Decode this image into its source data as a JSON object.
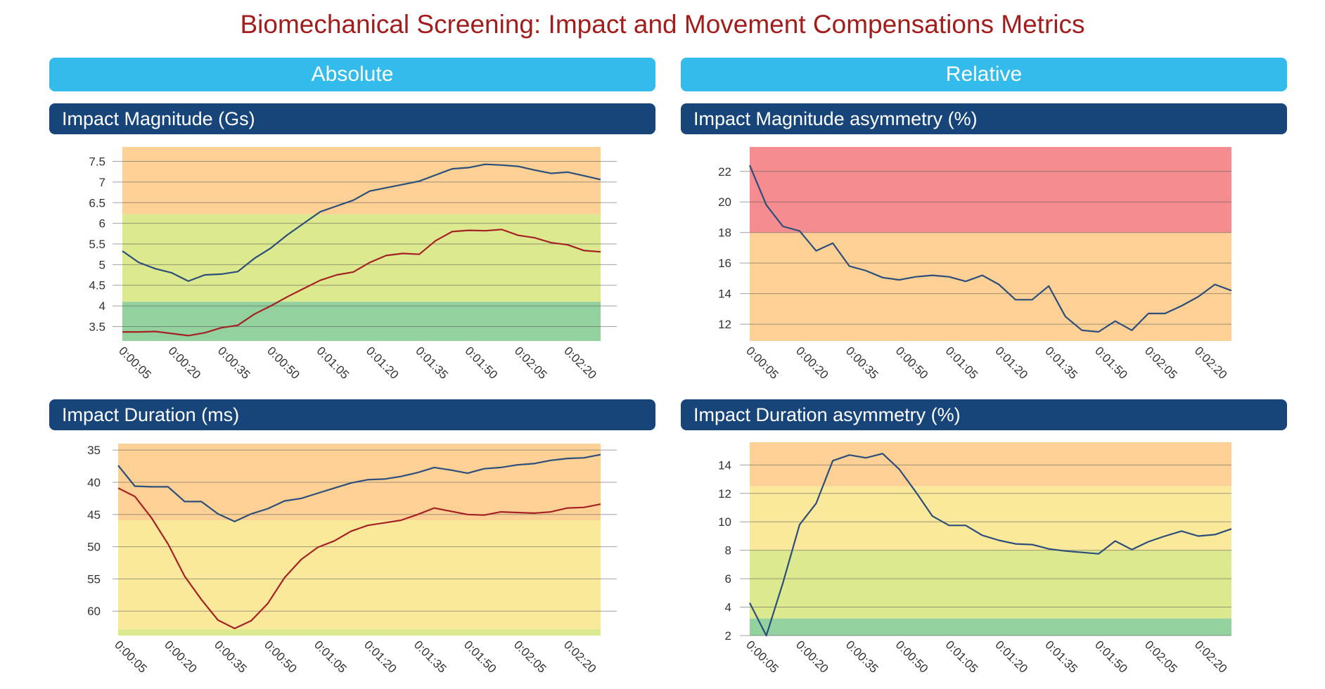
{
  "page": {
    "title": "Biomechanical Screening: Impact and Movement Compensations Metrics",
    "sections": {
      "absolute": "Absolute",
      "relative": "Relative"
    }
  },
  "colors": {
    "title": "#a31d1d",
    "section_bar": "#33bbeb",
    "chart_bar": "#17457a",
    "red_band": "#f58c8f",
    "orange_band": "#fdd196",
    "yellow_band": "#fbe99b",
    "lightgreen_band": "#dde98f",
    "green_band": "#93d19f",
    "series_blue": "#2c4e7a",
    "series_red": "#a52224"
  },
  "chart_data": [
    {
      "id": "impact-magnitude",
      "type": "line",
      "title": "Impact Magnitude (Gs)",
      "categories": [
        "0:00:05",
        "0:00:10",
        "0:00:15",
        "0:00:20",
        "0:00:25",
        "0:00:30",
        "0:00:35",
        "0:00:40",
        "0:00:45",
        "0:00:50",
        "0:00:55",
        "0:01:00",
        "0:01:05",
        "0:01:10",
        "0:01:15",
        "0:01:20",
        "0:01:25",
        "0:01:30",
        "0:01:35",
        "0:01:40",
        "0:01:45",
        "0:01:50",
        "0:01:55",
        "0:02:00",
        "0:02:05",
        "0:02:10",
        "0:02:15",
        "0:02:20",
        "0:02:25",
        "0:02:30"
      ],
      "tick_labels": [
        "0:00:05",
        "0:00:20",
        "0:00:35",
        "0:00:50",
        "0:01:05",
        "0:01:20",
        "0:01:35",
        "0:01:50",
        "0:02:05",
        "0:02:20"
      ],
      "y_ticks": [
        3.5,
        4,
        4.5,
        5,
        5.5,
        6,
        6.5,
        7,
        7.5
      ],
      "y_tick_labels": [
        "3.5",
        "4",
        "4.5",
        "5",
        "5.5",
        "6",
        "6.5",
        "7",
        "7.5"
      ],
      "ylim": [
        3.15,
        7.85
      ],
      "reversed": false,
      "bands": [
        {
          "from": 6.22,
          "to": 7.85,
          "color": "orange"
        },
        {
          "from": 4.1,
          "to": 6.22,
          "color": "lightgreen_yellow"
        },
        {
          "from": 3.15,
          "to": 4.1,
          "color": "green"
        }
      ],
      "series": [
        {
          "name": "blue",
          "color": "blue",
          "values": [
            5.33,
            5.05,
            4.9,
            4.8,
            4.6,
            4.75,
            4.77,
            4.83,
            5.15,
            5.4,
            5.72,
            6.0,
            6.28,
            6.42,
            6.56,
            6.78,
            6.86,
            6.94,
            7.02,
            7.17,
            7.32,
            7.35,
            7.43,
            7.41,
            7.38,
            7.29,
            7.21,
            7.24,
            7.15,
            7.06
          ]
        },
        {
          "name": "red",
          "color": "red",
          "values": [
            3.37,
            3.37,
            3.38,
            3.33,
            3.28,
            3.35,
            3.47,
            3.53,
            3.8,
            4.0,
            4.22,
            4.42,
            4.62,
            4.75,
            4.82,
            5.05,
            5.22,
            5.27,
            5.25,
            5.58,
            5.8,
            5.83,
            5.82,
            5.85,
            5.71,
            5.65,
            5.53,
            5.48,
            5.34,
            5.31
          ]
        }
      ]
    },
    {
      "id": "impact-magnitude-asymmetry",
      "type": "line",
      "title": "Impact Magnitude asymmetry (%)",
      "categories": [
        "0:00:05",
        "0:00:10",
        "0:00:15",
        "0:00:20",
        "0:00:25",
        "0:00:30",
        "0:00:35",
        "0:00:40",
        "0:00:45",
        "0:00:50",
        "0:00:55",
        "0:01:00",
        "0:01:05",
        "0:01:10",
        "0:01:15",
        "0:01:20",
        "0:01:25",
        "0:01:30",
        "0:01:35",
        "0:01:40",
        "0:01:45",
        "0:01:50",
        "0:01:55",
        "0:02:00",
        "0:02:05",
        "0:02:10",
        "0:02:15",
        "0:02:20",
        "0:02:25",
        "0:02:30"
      ],
      "tick_labels": [
        "0:00:05",
        "0:00:20",
        "0:00:35",
        "0:00:50",
        "0:01:05",
        "0:01:20",
        "0:01:35",
        "0:01:50",
        "0:02:05",
        "0:02:20"
      ],
      "y_ticks": [
        12,
        14,
        16,
        18,
        20,
        22
      ],
      "y_tick_labels": [
        "12",
        "14",
        "16",
        "18",
        "20",
        "22"
      ],
      "ylim": [
        10.9,
        23.6
      ],
      "reversed": false,
      "bands": [
        {
          "from": 18,
          "to": 23.6,
          "color": "red"
        },
        {
          "from": 10.9,
          "to": 18,
          "color": "orange"
        }
      ],
      "series": [
        {
          "name": "blue",
          "color": "blue",
          "values": [
            22.4,
            19.8,
            18.4,
            18.1,
            16.8,
            17.3,
            15.8,
            15.5,
            15.05,
            14.9,
            15.1,
            15.2,
            15.1,
            14.8,
            15.2,
            14.6,
            13.6,
            13.6,
            14.5,
            12.5,
            11.6,
            11.5,
            12.2,
            11.6,
            12.7,
            12.7,
            13.2,
            13.8,
            14.6,
            14.2
          ]
        }
      ]
    },
    {
      "id": "impact-duration",
      "type": "line",
      "title": "Impact Duration (ms)",
      "categories": [
        "0:00:05",
        "0:00:10",
        "0:00:15",
        "0:00:20",
        "0:00:25",
        "0:00:30",
        "0:00:35",
        "0:00:40",
        "0:00:45",
        "0:00:50",
        "0:00:55",
        "0:01:00",
        "0:01:05",
        "0:01:10",
        "0:01:15",
        "0:01:20",
        "0:01:25",
        "0:01:30",
        "0:01:35",
        "0:01:40",
        "0:01:45",
        "0:01:50",
        "0:01:55",
        "0:02:00",
        "0:02:05",
        "0:02:10",
        "0:02:15",
        "0:02:20",
        "0:02:25",
        "0:02:30"
      ],
      "tick_labels": [
        "0:00:05",
        "0:00:20",
        "0:00:35",
        "0:00:50",
        "0:01:05",
        "0:01:20",
        "0:01:35",
        "0:01:50",
        "0:02:05",
        "0:02:20"
      ],
      "y_ticks": [
        35,
        40,
        45,
        50,
        55,
        60
      ],
      "y_tick_labels": [
        "35",
        "40",
        "45",
        "50",
        "55",
        "60"
      ],
      "ylim": [
        34.0,
        63.8
      ],
      "reversed": true,
      "bands": [
        {
          "from": 34.0,
          "to": 45.9,
          "color": "orange"
        },
        {
          "from": 45.9,
          "to": 62.8,
          "color": "yellow"
        },
        {
          "from": 62.8,
          "to": 63.8,
          "color": "lightgreen"
        }
      ],
      "series": [
        {
          "name": "blue",
          "color": "blue",
          "values": [
            37.4,
            40.6,
            40.7,
            40.7,
            43.0,
            43.0,
            44.9,
            46.1,
            44.9,
            44.1,
            42.9,
            42.5,
            41.7,
            40.9,
            40.1,
            39.6,
            39.5,
            39.1,
            38.5,
            37.7,
            38.1,
            38.6,
            37.9,
            37.7,
            37.3,
            37.1,
            36.6,
            36.3,
            36.2,
            35.7
          ]
        },
        {
          "name": "red",
          "color": "red",
          "values": [
            40.9,
            42.2,
            45.5,
            49.6,
            54.6,
            58.2,
            61.4,
            62.7,
            61.5,
            58.8,
            54.8,
            52.0,
            50.1,
            49.1,
            47.6,
            46.7,
            46.3,
            45.9,
            45.0,
            44.0,
            44.5,
            45.0,
            45.1,
            44.6,
            44.7,
            44.8,
            44.6,
            44.0,
            43.9,
            43.4
          ]
        }
      ]
    },
    {
      "id": "impact-duration-asymmetry",
      "type": "line",
      "title": "Impact Duration asymmetry (%)",
      "categories": [
        "0:00:05",
        "0:00:10",
        "0:00:15",
        "0:00:20",
        "0:00:25",
        "0:00:30",
        "0:00:35",
        "0:00:40",
        "0:00:45",
        "0:00:50",
        "0:00:55",
        "0:01:00",
        "0:01:05",
        "0:01:10",
        "0:01:15",
        "0:01:20",
        "0:01:25",
        "0:01:30",
        "0:01:35",
        "0:01:40",
        "0:01:45",
        "0:01:50",
        "0:01:55",
        "0:02:00",
        "0:02:05",
        "0:02:10",
        "0:02:15",
        "0:02:20",
        "0:02:25",
        "0:02:30"
      ],
      "tick_labels": [
        "0:00:05",
        "0:00:20",
        "0:00:35",
        "0:00:50",
        "0:01:05",
        "0:01:20",
        "0:01:35",
        "0:01:50",
        "0:02:05",
        "0:02:20"
      ],
      "y_ticks": [
        2,
        4,
        6,
        8,
        10,
        12,
        14
      ],
      "y_tick_labels": [
        "2",
        "4",
        "6",
        "8",
        "10",
        "12",
        "14"
      ],
      "ylim": [
        2,
        15.6
      ],
      "reversed": false,
      "bands": [
        {
          "from": 12.5,
          "to": 15.6,
          "color": "orange"
        },
        {
          "from": 8.0,
          "to": 12.5,
          "color": "yellow"
        },
        {
          "from": 3.2,
          "to": 6.8,
          "color": "lightgreen"
        },
        {
          "from": 6.8,
          "to": 8.0,
          "color": "lightgreen"
        },
        {
          "from": 2,
          "to": 3.2,
          "color": "green"
        }
      ],
      "series": [
        {
          "name": "blue",
          "color": "blue",
          "values": [
            4.3,
            2.0,
            5.7,
            9.8,
            11.3,
            14.3,
            14.7,
            14.5,
            14.8,
            13.7,
            12.1,
            10.4,
            9.75,
            9.75,
            9.05,
            8.7,
            8.45,
            8.4,
            8.1,
            7.95,
            7.85,
            7.75,
            8.65,
            8.05,
            8.6,
            9.0,
            9.35,
            9.0,
            9.1,
            9.5
          ]
        }
      ]
    }
  ]
}
